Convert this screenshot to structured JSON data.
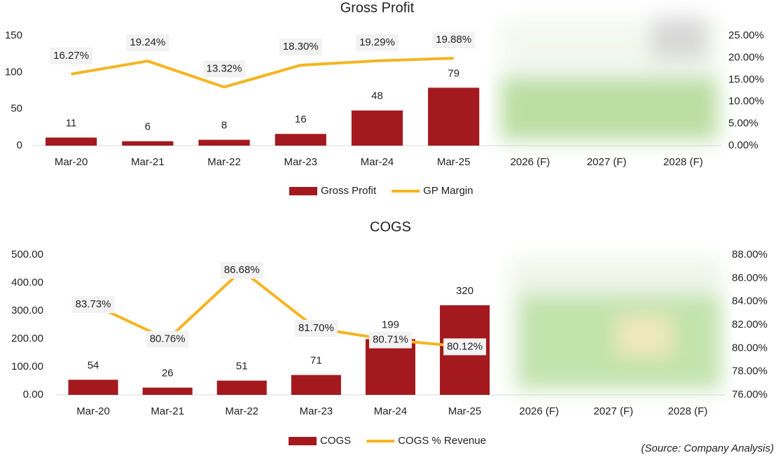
{
  "chart_data": [
    {
      "type": "bar_line",
      "title": "Gross Profit",
      "categories": [
        "Mar-20",
        "Mar-21",
        "Mar-22",
        "Mar-23",
        "Mar-24",
        "Mar-25",
        "2026 (F)",
        "2027 (F)",
        "2028 (F)"
      ],
      "series": [
        {
          "name": "Gross Profit",
          "color": "#a3191e",
          "type": "bar",
          "values": [
            11,
            6,
            8,
            16,
            48,
            79,
            null,
            null,
            null
          ]
        },
        {
          "name": "GP Margin",
          "color": "#f4b521",
          "type": "line",
          "axis": "y2",
          "values": [
            16.27,
            19.24,
            13.32,
            18.3,
            19.29,
            19.88,
            null,
            null,
            null
          ],
          "value_labels": [
            "16.27%",
            "19.24%",
            "13.32%",
            "18.30%",
            "19.29%",
            "19.88%",
            null,
            null,
            null
          ]
        }
      ],
      "ylim": [
        0,
        150
      ],
      "yticks": [
        0,
        50,
        100,
        150
      ],
      "y2lim": [
        0,
        25
      ],
      "y2ticks": [
        {
          "value": 0,
          "label": "0.00%"
        },
        {
          "value": 5,
          "label": "5.00%"
        },
        {
          "value": 10,
          "label": "10.00%"
        },
        {
          "value": 15,
          "label": "15.00%"
        },
        {
          "value": 20,
          "label": "20.00%"
        },
        {
          "value": 25,
          "label": "25.00%"
        }
      ],
      "legend": "bottom"
    },
    {
      "type": "bar_line",
      "title": "COGS",
      "categories": [
        "Mar-20",
        "Mar-21",
        "Mar-22",
        "Mar-23",
        "Mar-24",
        "Mar-25",
        "2026 (F)",
        "2027 (F)",
        "2028 (F)"
      ],
      "series": [
        {
          "name": "COGS",
          "color": "#a3191e",
          "type": "bar",
          "values": [
            54,
            26,
            51,
            71,
            199,
            320,
            null,
            null,
            null
          ]
        },
        {
          "name": "COGS % Revenue",
          "color": "#f4b521",
          "type": "line",
          "axis": "y2",
          "values": [
            83.73,
            80.76,
            86.68,
            81.7,
            80.71,
            80.12,
            null,
            null,
            null
          ],
          "value_labels": [
            "83.73%",
            "80.76%",
            "86.68%",
            "81.70%",
            "80.71%",
            "80.12%",
            null,
            null,
            null
          ]
        }
      ],
      "ylim": [
        0,
        500
      ],
      "yticks": [
        {
          "value": 0,
          "label": "0.00"
        },
        {
          "value": 100,
          "label": "100.00"
        },
        {
          "value": 200,
          "label": "200.00"
        },
        {
          "value": 300,
          "label": "300.00"
        },
        {
          "value": 400,
          "label": "400.00"
        },
        {
          "value": 500,
          "label": "500.00"
        }
      ],
      "y2lim": [
        76,
        88
      ],
      "y2ticks": [
        {
          "value": 76,
          "label": "76.00%"
        },
        {
          "value": 78,
          "label": "78.00%"
        },
        {
          "value": 80,
          "label": "80.00%"
        },
        {
          "value": 82,
          "label": "82.00%"
        },
        {
          "value": 84,
          "label": "84.00%"
        },
        {
          "value": 86,
          "label": "86.00%"
        },
        {
          "value": 88,
          "label": "88.00%"
        }
      ],
      "legend": "bottom"
    }
  ],
  "source": "(Source: Company Analysis)"
}
